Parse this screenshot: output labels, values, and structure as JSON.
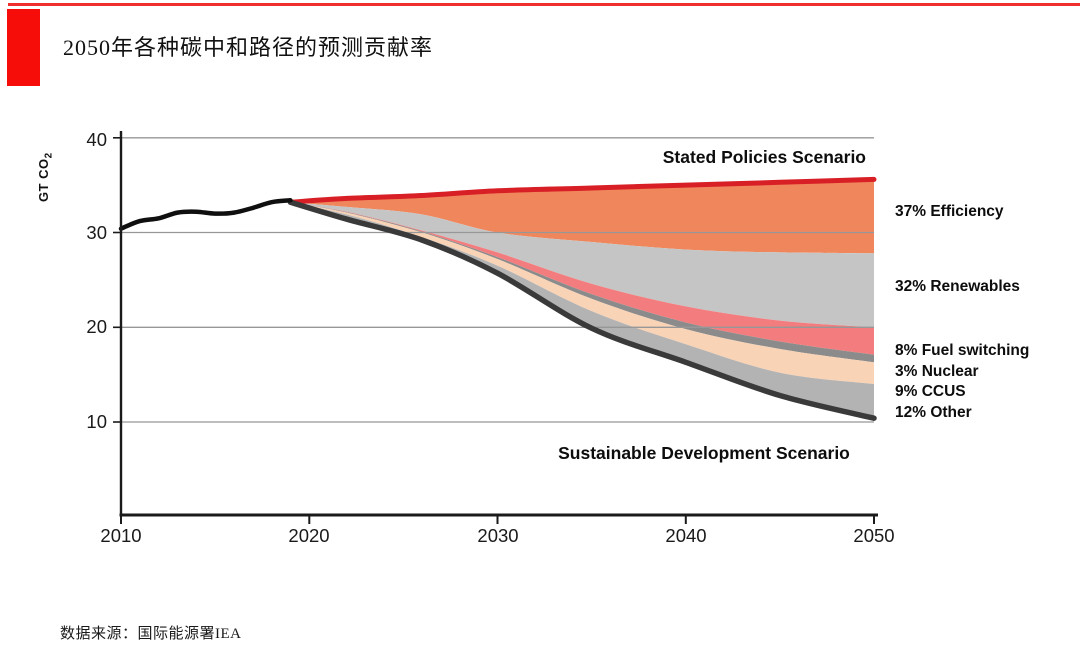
{
  "page": {
    "title": "2050年各种碳中和路径的预测贡献率",
    "source_note": "数据来源：国际能源署IEA"
  },
  "accent": {
    "top_line_red": "#ee2f2b",
    "block_red": "#f60d0a"
  },
  "chart_data": {
    "type": "area",
    "ylabel_prefix": "GT CO",
    "ylabel_sub": "2",
    "xlim": [
      2010,
      2050
    ],
    "ylim": [
      0,
      40
    ],
    "x_ticks": [
      2010,
      2020,
      2030,
      2040,
      2050
    ],
    "y_ticks": [
      40,
      30,
      20,
      10
    ],
    "grid_color": "#979797",
    "axis_color": "#1a1a1a",
    "historical": {
      "name": "historical-emissions",
      "years": [
        2010,
        2011,
        2012,
        2013,
        2014,
        2015,
        2016,
        2017,
        2018,
        2019
      ],
      "values": [
        30.4,
        31.2,
        31.5,
        32.1,
        32.2,
        32.0,
        32.1,
        32.6,
        33.2,
        33.4
      ],
      "color": "#0f0f0f"
    },
    "scenario_years": [
      2019,
      2022,
      2026,
      2030,
      2035,
      2040,
      2045,
      2050
    ],
    "boundaries": {
      "steps_top": [
        33.2,
        33.6,
        33.9,
        34.4,
        34.7,
        35.0,
        35.3,
        35.6
      ],
      "efficiency_bottom": [
        33.2,
        32.7,
        31.9,
        30.0,
        29.0,
        28.2,
        27.9,
        27.8
      ],
      "renewables_bottom": [
        33.2,
        32.2,
        30.2,
        27.9,
        24.6,
        22.2,
        20.7,
        20.0
      ],
      "fuel_switch_bottom": [
        33.2,
        32.15,
        30.1,
        27.4,
        23.5,
        20.5,
        18.5,
        17.1
      ],
      "nuclear_bottom": [
        33.2,
        32.1,
        30.0,
        27.2,
        23.0,
        19.8,
        17.7,
        16.3
      ],
      "ccus_bottom": [
        33.2,
        31.9,
        29.5,
        26.5,
        21.7,
        18.2,
        15.2,
        14.0
      ],
      "sds_bottom": [
        33.2,
        31.4,
        29.2,
        25.7,
        19.9,
        16.3,
        12.8,
        10.4
      ]
    },
    "bands": [
      {
        "name": "efficiency",
        "label": "37% Efficiency",
        "upper": "steps_top",
        "lower": "efficiency_bottom",
        "color": "#f0875c"
      },
      {
        "name": "renewables",
        "label": "32% Renewables",
        "upper": "efficiency_bottom",
        "lower": "renewables_bottom",
        "color": "#c6c5c5"
      },
      {
        "name": "fuel-switching",
        "label": "8% Fuel switching",
        "upper": "renewables_bottom",
        "lower": "fuel_switch_bottom",
        "color": "#f37d7e"
      },
      {
        "name": "nuclear",
        "label": "3% Nuclear",
        "upper": "fuel_switch_bottom",
        "lower": "nuclear_bottom",
        "color": "#8b8b8b"
      },
      {
        "name": "ccus",
        "label": "9% CCUS",
        "upper": "nuclear_bottom",
        "lower": "ccus_bottom",
        "color": "#f9d3b6"
      },
      {
        "name": "other",
        "label": "12% Other",
        "upper": "ccus_bottom",
        "lower": "sds_bottom",
        "color": "#b4b3b3"
      }
    ],
    "scenario_lines": [
      {
        "name": "stated-policies",
        "label": "Stated Policies Scenario",
        "series": "steps_top",
        "color": "#d81f26",
        "width": 5
      },
      {
        "name": "sustainable-development",
        "label": "Sustainable Development Scenario",
        "series": "sds_bottom",
        "color": "#3a3a3a",
        "width": 5.5
      }
    ]
  }
}
